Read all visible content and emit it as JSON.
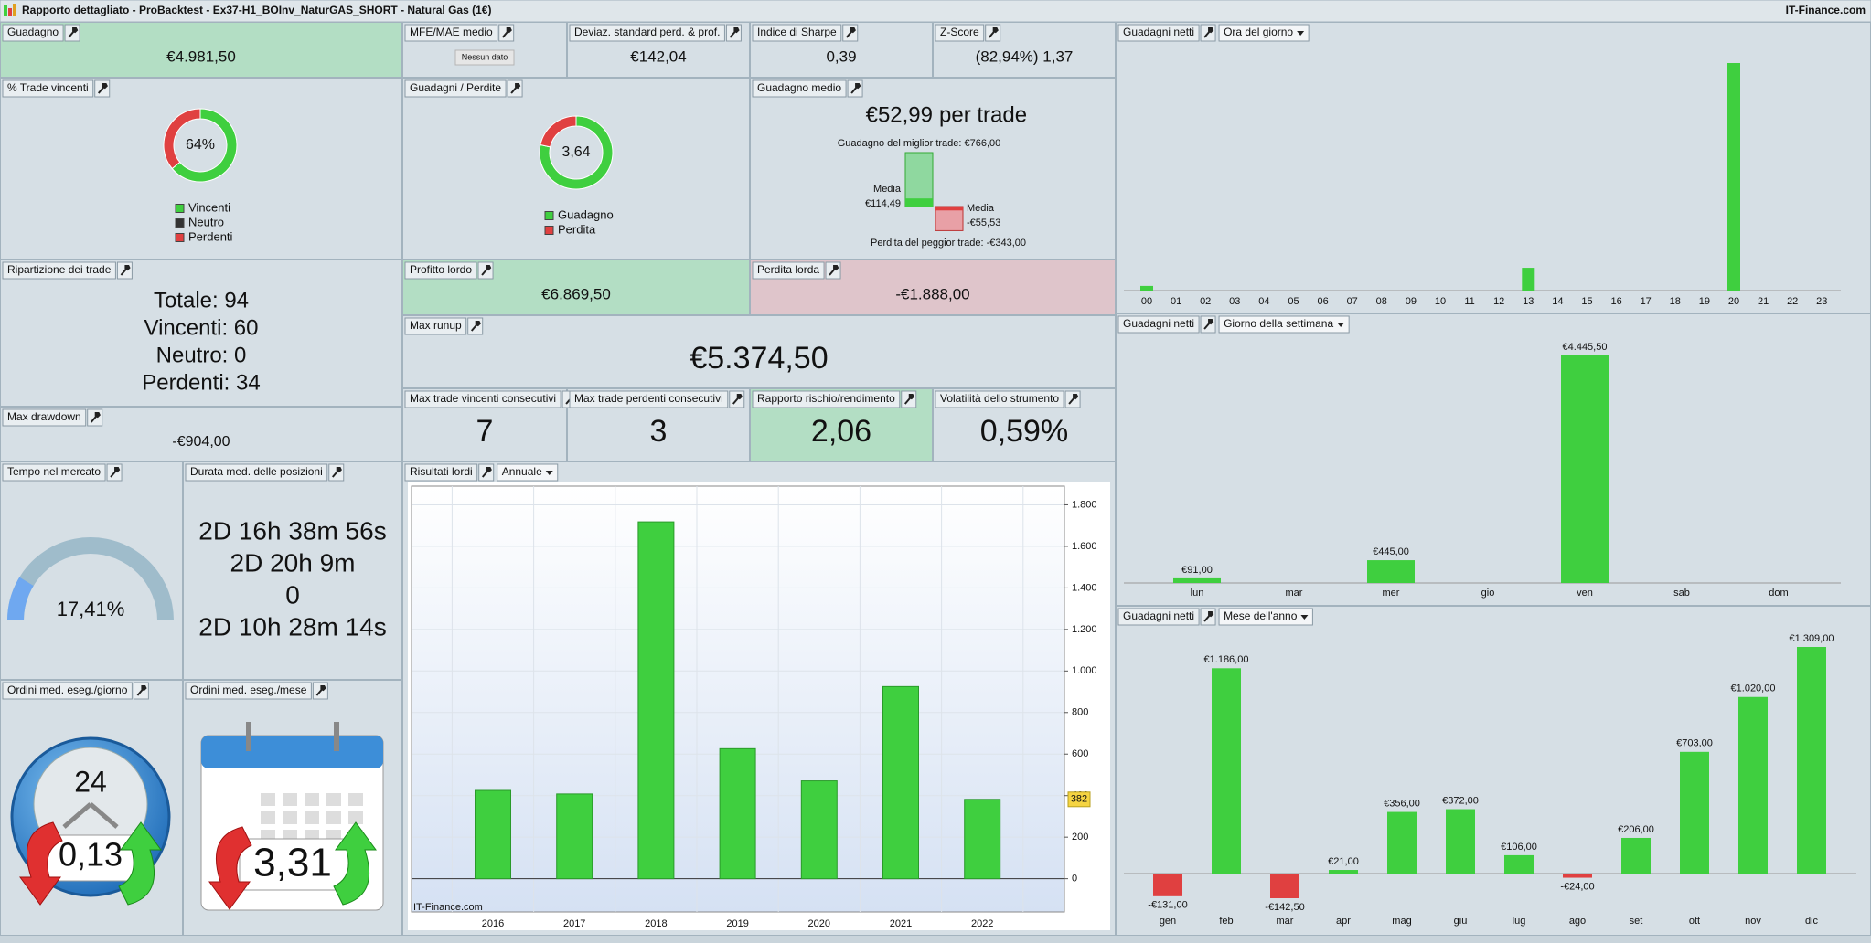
{
  "header": {
    "title": "Rapporto dettagliato - ProBacktest - Ex37-H1_BOInv_NaturGAS_SHORT - Natural Gas (1€)",
    "brand": "IT-Finance.com"
  },
  "panels": {
    "guadagno": {
      "title": "Guadagno",
      "value": "€4.981,50"
    },
    "mfe": {
      "title": "MFE/MAE medio",
      "value": "Nessun dato"
    },
    "deviaz": {
      "title": "Deviaz. standard perd. & prof.",
      "value": "€142,04"
    },
    "sharpe": {
      "title": "Indice di Sharpe",
      "value": "0,39"
    },
    "zscore": {
      "title": "Z-Score",
      "value": "(82,94%) 1,37"
    },
    "medio": {
      "title": "Guadagno medio",
      "value": "€52,99",
      "unit": "per trade",
      "best_label": "Guadagno del miglior trade: €766,00",
      "best": 766,
      "avg_win_title": "Media",
      "avg_win_label": "€114,49",
      "avg_win": 114.49,
      "avg_loss_title": "Media",
      "avg_loss_label": "-€55,53",
      "avg_loss": -55.53,
      "worst_label": "Perdita del peggior trade: -€343,00",
      "worst": -343
    },
    "ripartizione": {
      "title": "Ripartizione dei trade",
      "lines": [
        "Totale: 94",
        "Vincenti: 60",
        "Neutro: 0",
        "Perdenti: 34"
      ]
    },
    "profitto": {
      "title": "Profitto lordo",
      "value": "€6.869,50"
    },
    "perdita": {
      "title": "Perdita lorda",
      "value": "-€1.888,00"
    },
    "runup": {
      "title": "Max runup",
      "value": "€5.374,50"
    },
    "drawdown": {
      "title": "Max drawdown",
      "value": "-€904,00"
    },
    "cons_win": {
      "title": "Max trade vincenti consecutivi",
      "value": "7"
    },
    "cons_loss": {
      "title": "Max trade perdenti consecutivi",
      "value": "3"
    },
    "rapporto": {
      "title": "Rapporto rischio/rendimento",
      "value": "2,06"
    },
    "volatilita": {
      "title": "Volatilità dello strumento",
      "value": "0,59%"
    },
    "tempo": {
      "title": "Tempo nel mercato",
      "value": 17.41,
      "value_label": "17,41%"
    },
    "durata": {
      "title": "Durata med. delle posizioni",
      "lines": [
        "2D 16h 38m 56s",
        "2D 20h 9m",
        "0",
        "2D 10h 28m 14s"
      ]
    },
    "ord_giorno": {
      "title": "Ordini med. eseg./giorno",
      "value": "0,13",
      "icon_label": "24"
    },
    "ord_mese": {
      "title": "Ordini med. eseg./mese",
      "value": "3,31"
    }
  },
  "chart_data": [
    {
      "type": "bar",
      "title": "Guadagni netti",
      "period": "Ora del giorno",
      "categories": [
        "00",
        "01",
        "02",
        "03",
        "04",
        "05",
        "06",
        "07",
        "08",
        "09",
        "10",
        "11",
        "12",
        "13",
        "14",
        "15",
        "16",
        "17",
        "18",
        "19",
        "20",
        "21",
        "22",
        "23"
      ],
      "values": [
        91,
        0,
        0,
        0,
        0,
        0,
        0,
        0,
        0,
        0,
        0,
        0,
        0,
        445,
        0,
        0,
        0,
        0,
        0,
        0,
        4445.5,
        0,
        0,
        0
      ],
      "color": "#3fcf3f",
      "negative_color": "#e04040"
    },
    {
      "type": "bar",
      "title": "Guadagni netti",
      "period": "Giorno della settimana",
      "categories": [
        "lun",
        "mar",
        "mer",
        "gio",
        "ven",
        "sab",
        "dom"
      ],
      "values": [
        91,
        0,
        445,
        0,
        4445.5,
        0,
        0
      ],
      "value_labels": [
        "€91,00",
        null,
        "€445,00",
        null,
        "€4.445,50",
        null,
        null
      ],
      "color": "#3fcf3f",
      "negative_color": "#e04040"
    },
    {
      "type": "bar",
      "title": "Guadagni netti",
      "period": "Mese dell'anno",
      "categories": [
        "gen",
        "feb",
        "mar",
        "apr",
        "mag",
        "giu",
        "lug",
        "ago",
        "set",
        "ott",
        "nov",
        "dic"
      ],
      "values": [
        -131,
        1186,
        -142.5,
        21,
        356,
        372,
        106,
        -24,
        206,
        703,
        1020,
        1309
      ],
      "value_labels": [
        "-€131,00",
        "€1.186,00",
        "-€142,50",
        "€21,00",
        "€356,00",
        "€372,00",
        "€106,00",
        "-€24,00",
        "€206,00",
        "€703,00",
        "€1.020,00",
        "€1.309,00"
      ],
      "color": "#3fcf3f",
      "negative_color": "#e04040"
    },
    {
      "type": "bar",
      "title": "Risultati lordi",
      "period": "Annuale",
      "categories": [
        "2016",
        "2017",
        "2018",
        "2019",
        "2020",
        "2021",
        "2022"
      ],
      "values": [
        425,
        408,
        1718,
        626,
        471,
        925,
        382
      ],
      "color": "#3fcf3f",
      "ylim": [
        -160,
        1890
      ],
      "yticks": [
        0,
        200,
        400,
        600,
        800,
        {
          "value": 1000,
          "label": "1.000"
        },
        {
          "value": 1200,
          "label": "1.200"
        },
        {
          "value": 1400,
          "label": "1.400"
        },
        {
          "value": 1600,
          "label": "1.600"
        },
        {
          "value": 1800,
          "label": "1.800"
        }
      ],
      "grid": true,
      "watermark": "IT-Finance.com"
    },
    {
      "type": "donut",
      "title": "% Trade vincenti",
      "center_label": "64%",
      "categories": [
        "Vincenti",
        "Neutro",
        "Perdenti"
      ],
      "values": [
        64,
        0,
        36
      ],
      "colors": [
        "#3fcf3f",
        "#333333",
        "#e04040"
      ]
    },
    {
      "type": "donut",
      "title": "Guadagni / Perdite",
      "center_label": "3,64",
      "categories": [
        "Guadagno",
        "Perdita"
      ],
      "values": [
        78.4,
        21.6
      ],
      "colors": [
        "#3fcf3f",
        "#e04040"
      ]
    }
  ]
}
